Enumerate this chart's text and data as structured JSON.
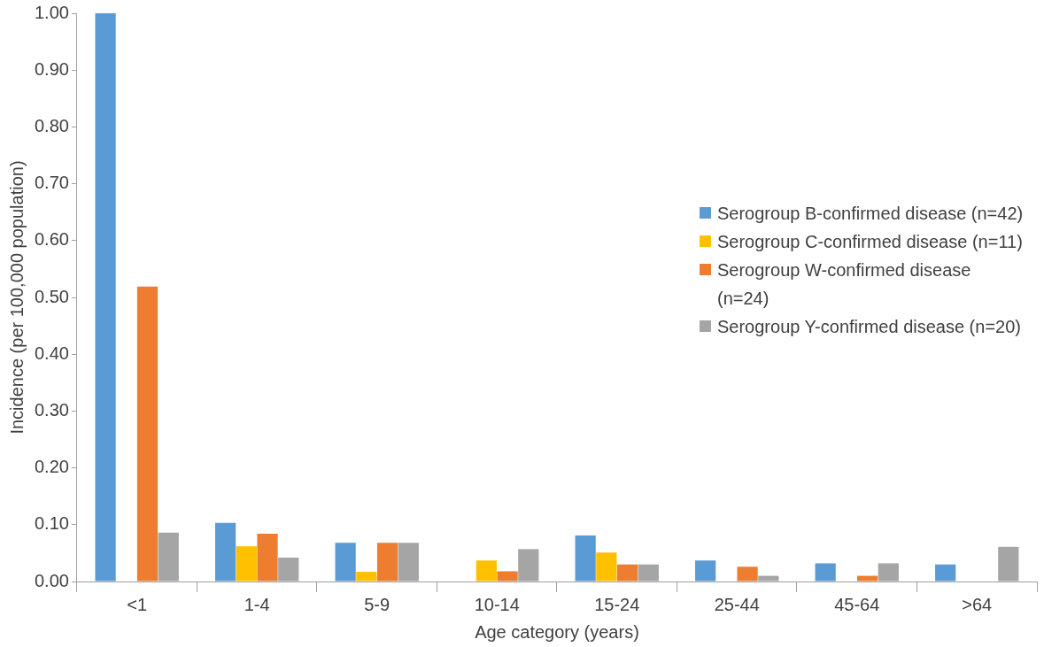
{
  "chart_data": {
    "type": "bar",
    "xlabel": "Age category (years)",
    "ylabel": "Incidence (per 100,000 population)",
    "categories": [
      "<1",
      "1-4",
      "5-9",
      "10-14",
      "15-24",
      "25-44",
      "45-64",
      ">64"
    ],
    "series": [
      {
        "name": "Serogroup B-confirmed disease (n=42)",
        "color": "#5b9bd5",
        "values": [
          1.0,
          0.103,
          0.068,
          0,
          0.081,
          0.037,
          0.032,
          0.03
        ]
      },
      {
        "name": "Serogroup C-confirmed disease (n=11)",
        "color": "#ffc000",
        "values": [
          0,
          0.062,
          0.017,
          0.037,
          0.051,
          0,
          0,
          0
        ]
      },
      {
        "name": "Serogroup W-confirmed disease (n=24)",
        "color": "#ed7d31",
        "values": [
          0.519,
          0.084,
          0.068,
          0.018,
          0.03,
          0.026,
          0.01,
          0
        ]
      },
      {
        "name": "Serogroup Y-confirmed disease (n=20)",
        "color": "#a5a5a5",
        "values": [
          0.086,
          0.042,
          0.068,
          0.057,
          0.03,
          0.01,
          0.032,
          0.061
        ]
      }
    ],
    "ylim": [
      0,
      1.0
    ],
    "yticks": [
      {
        "value": 0,
        "label": "0.00"
      },
      {
        "value": 0.1,
        "label": "0.10"
      },
      {
        "value": 0.2,
        "label": "0.20"
      },
      {
        "value": 0.3,
        "label": "0.30"
      },
      {
        "value": 0.4,
        "label": "0.40"
      },
      {
        "value": 0.5,
        "label": "0.50"
      },
      {
        "value": 0.6,
        "label": "0.60"
      },
      {
        "value": 0.7,
        "label": "0.70"
      },
      {
        "value": 0.8,
        "label": "0.80"
      },
      {
        "value": 0.9,
        "label": "0.90"
      },
      {
        "value": 1.0,
        "label": "1.00"
      }
    ],
    "grid": false,
    "legend": "right"
  }
}
